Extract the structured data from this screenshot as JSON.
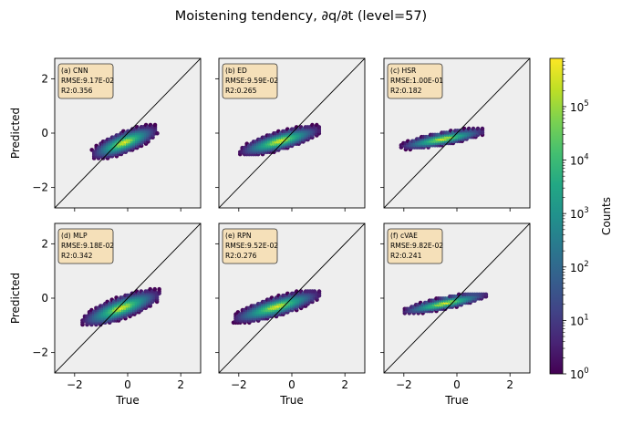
{
  "figure": {
    "title": "Moistening tendency, ∂q/∂t (level=57)",
    "xlabel": "True",
    "ylabel": "Predicted"
  },
  "colorbar": {
    "label": "Counts",
    "ticks": [
      {
        "base": "10",
        "exp": "0",
        "value": 1
      },
      {
        "base": "10",
        "exp": "1",
        "value": 10
      },
      {
        "base": "10",
        "exp": "2",
        "value": 100
      },
      {
        "base": "10",
        "exp": "3",
        "value": 1000
      },
      {
        "base": "10",
        "exp": "4",
        "value": 10000
      },
      {
        "base": "10",
        "exp": "5",
        "value": 100000
      }
    ],
    "range": [
      1,
      800000
    ],
    "scale": "log",
    "colormap": "viridis"
  },
  "chart_data": [
    {
      "type": "hexbin",
      "label": "(a) CNN",
      "rmse": "RMSE:9.17E-02",
      "r2": "R2:0.356",
      "xlim": [
        -2.75,
        2.75
      ],
      "ylim": [
        -2.75,
        2.75
      ],
      "xticks": [
        "−2",
        "0",
        "2"
      ],
      "yticks": [
        "−2",
        "0",
        "2"
      ],
      "cloud": {
        "x_range": [
          -1.35,
          1.15
        ],
        "y_range": [
          -1.0,
          0.35
        ],
        "slope": 0.36
      }
    },
    {
      "type": "hexbin",
      "label": "(b) ED",
      "rmse": "RMSE:9.59E-02",
      "r2": "R2:0.265",
      "xlim": [
        -2.75,
        2.75
      ],
      "ylim": [
        -2.75,
        2.75
      ],
      "xticks": [
        "−2",
        "0",
        "2"
      ],
      "yticks": [
        "−2",
        "0",
        "2"
      ],
      "cloud": {
        "x_range": [
          -1.95,
          1.1
        ],
        "y_range": [
          -0.85,
          0.3
        ],
        "slope": 0.27
      }
    },
    {
      "type": "hexbin",
      "label": "(c) HSR",
      "rmse": "RMSE:1.00E-01",
      "r2": "R2:0.182",
      "xlim": [
        -2.75,
        2.75
      ],
      "ylim": [
        -2.75,
        2.75
      ],
      "xticks": [
        "−2",
        "0",
        "2"
      ],
      "yticks": [
        "−2",
        "0",
        "2"
      ],
      "cloud": {
        "x_range": [
          -2.1,
          1.1
        ],
        "y_range": [
          -0.6,
          0.2
        ],
        "slope": 0.18
      }
    },
    {
      "type": "hexbin",
      "label": "(d) MLP",
      "rmse": "RMSE:9.18E-02",
      "r2": "R2:0.342",
      "xlim": [
        -2.75,
        2.75
      ],
      "ylim": [
        -2.75,
        2.75
      ],
      "xticks": [
        "−2",
        "0",
        "2"
      ],
      "yticks": [
        "−2",
        "0",
        "2"
      ],
      "cloud": {
        "x_range": [
          -1.7,
          1.25
        ],
        "y_range": [
          -1.05,
          0.35
        ],
        "slope": 0.34
      }
    },
    {
      "type": "hexbin",
      "label": "(e) RPN",
      "rmse": "RMSE:9.52E-02",
      "r2": "R2:0.276",
      "xlim": [
        -2.75,
        2.75
      ],
      "ylim": [
        -2.75,
        2.75
      ],
      "xticks": [
        "−2",
        "0",
        "2"
      ],
      "yticks": [
        "−2",
        "0",
        "2"
      ],
      "cloud": {
        "x_range": [
          -2.2,
          1.1
        ],
        "y_range": [
          -0.9,
          0.3
        ],
        "slope": 0.28
      }
    },
    {
      "type": "hexbin",
      "label": "(f) cVAE",
      "rmse": "RMSE:9.82E-02",
      "r2": "R2:0.241",
      "xlim": [
        -2.75,
        2.75
      ],
      "ylim": [
        -2.75,
        2.75
      ],
      "xticks": [
        "−2",
        "0",
        "2"
      ],
      "yticks": [
        "−2",
        "0",
        "2"
      ],
      "cloud": {
        "x_range": [
          -2.05,
          1.2
        ],
        "y_range": [
          -0.55,
          0.2
        ],
        "slope": 0.2
      }
    }
  ]
}
